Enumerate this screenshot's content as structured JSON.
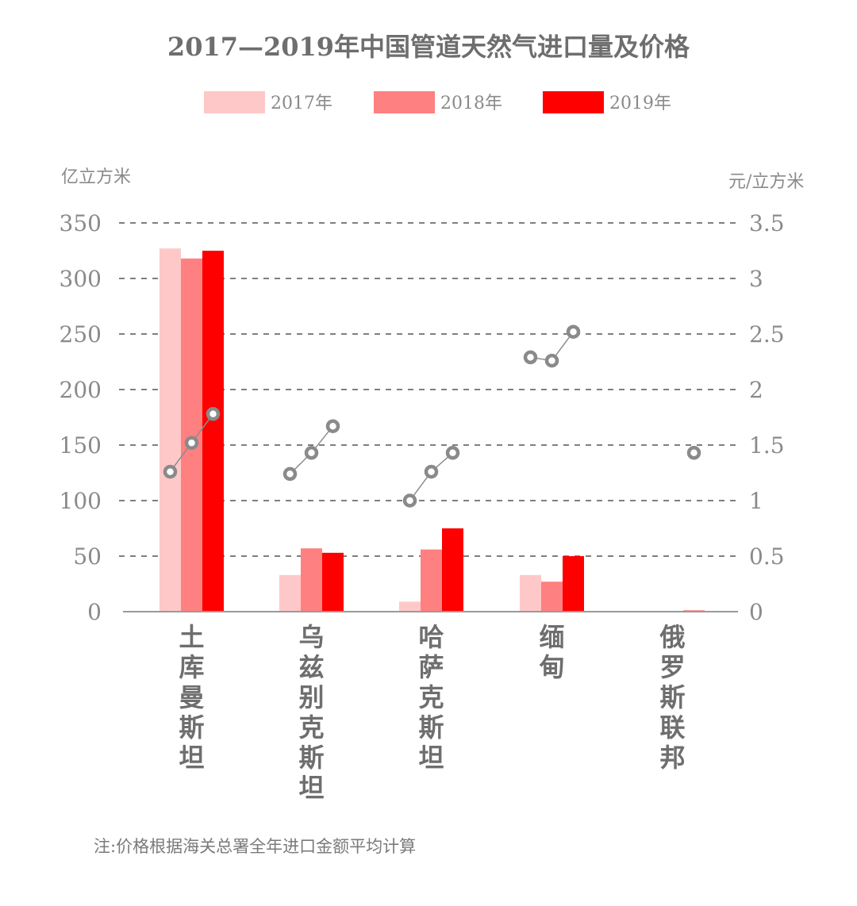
{
  "chart_data": {
    "type": "bar",
    "title": "2017—2019年中国管道天然气进口量及价格",
    "categories": [
      "土库曼斯坦",
      "乌兹别克斯坦",
      "哈萨克斯坦",
      "缅甸",
      "俄罗斯联邦"
    ],
    "series": [
      {
        "name": "2017年",
        "color": "#ffc8c8",
        "values": [
          327,
          33,
          9,
          33,
          0
        ]
      },
      {
        "name": "2018年",
        "color": "#ff8080",
        "values": [
          318,
          57,
          56,
          27,
          0
        ]
      },
      {
        "name": "2019年",
        "color": "#ff0000",
        "values": [
          325,
          53,
          75,
          50,
          1
        ]
      }
    ],
    "price_series": [
      [
        1.26,
        1.52,
        1.78
      ],
      [
        1.24,
        1.43,
        1.67
      ],
      [
        1.0,
        1.26,
        1.43
      ],
      [
        2.29,
        2.26,
        2.52
      ],
      [
        null,
        null,
        1.43
      ]
    ],
    "ylabel_left": "亿立方米",
    "ylabel_right": "元/立方米",
    "ylim_left": [
      0,
      350
    ],
    "ylim_right": [
      0,
      3.5
    ],
    "yticks_left": [
      "0",
      "50",
      "100",
      "150",
      "200",
      "250",
      "300",
      "350"
    ],
    "yticks_right": [
      "0",
      "0.5",
      "1",
      "1.5",
      "2",
      "2.5",
      "3",
      "3.5"
    ],
    "grid": true,
    "legend_position": "top",
    "note": "注:价格根据海关总署全年进口金额平均计算"
  }
}
